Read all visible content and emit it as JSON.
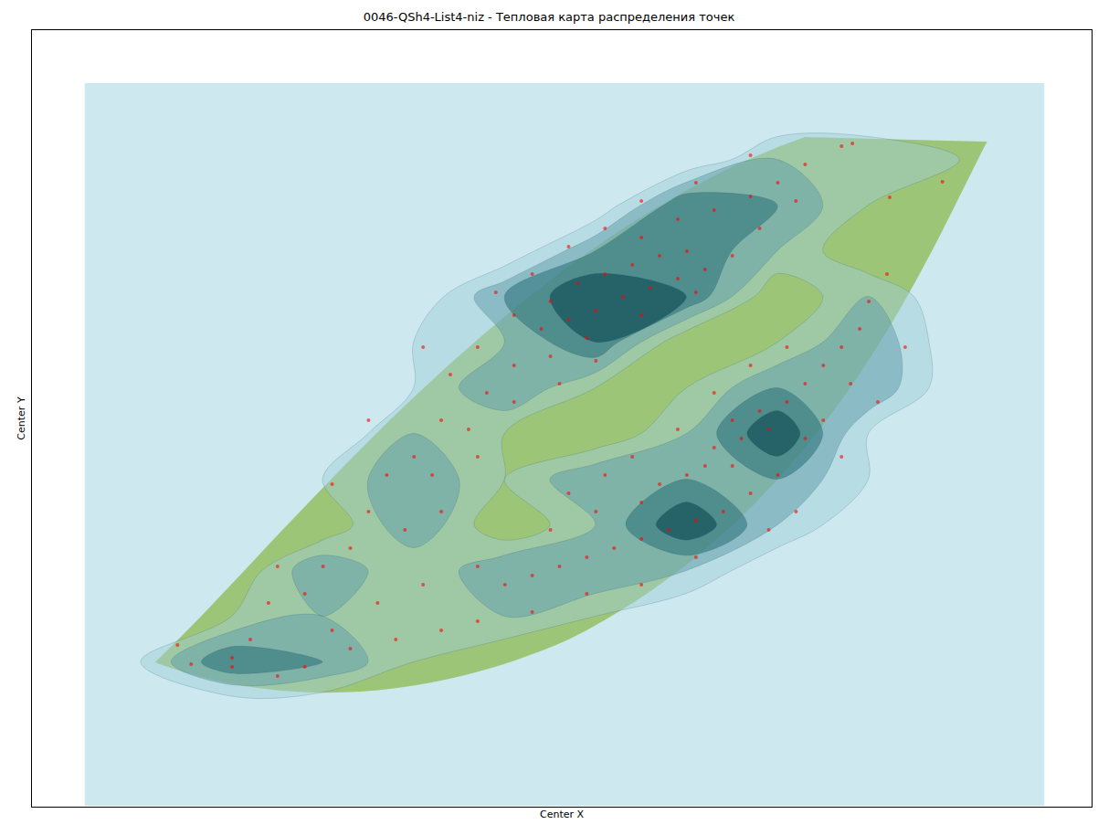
{
  "chart_data": {
    "type": "density",
    "title": "0046-QSh4-List4-niz - Тепловая карта распределения точек",
    "x_label": "Center X",
    "y_label": "Center Y",
    "x": [
      600,
      630,
      660,
      690,
      720,
      750,
      620,
      650,
      680,
      710,
      740,
      770,
      590,
      640,
      700,
      760,
      800,
      560,
      580,
      700,
      740,
      780,
      820,
      850,
      660,
      620,
      540,
      520,
      560,
      600,
      650,
      530,
      490,
      480,
      510,
      560,
      450,
      420,
      470,
      400,
      440,
      380,
      350,
      330,
      480,
      520,
      610,
      460,
      830,
      880,
      870,
      820,
      760,
      700,
      400,
      360,
      300,
      290,
      270,
      250,
      800,
      830,
      860,
      780,
      810,
      840,
      770,
      800,
      750,
      720,
      880,
      900,
      920,
      940,
      860,
      820,
      880,
      850,
      820,
      790,
      760,
      730,
      700,
      670,
      640,
      610,
      580,
      550,
      600,
      650,
      700,
      950,
      970,
      930,
      900,
      870,
      840,
      760,
      700,
      640,
      580,
      520,
      480,
      430,
      380,
      330,
      300,
      250,
      520,
      460,
      410,
      360,
      990,
      960,
      920,
      780,
      740,
      690,
      660,
      620,
      190,
      205,
      920,
      932,
      973,
      1031
    ],
    "y": [
      330,
      310,
      300,
      290,
      280,
      275,
      350,
      340,
      325,
      315,
      305,
      295,
      360,
      370,
      345,
      320,
      280,
      345,
      300,
      260,
      240,
      230,
      215,
      200,
      250,
      270,
      320,
      380,
      400,
      390,
      395,
      430,
      410,
      460,
      470,
      440,
      500,
      520,
      520,
      560,
      580,
      600,
      620,
      650,
      560,
      500,
      420,
      380,
      250,
      180,
      220,
      170,
      200,
      220,
      460,
      530,
      620,
      660,
      700,
      720,
      460,
      450,
      440,
      490,
      480,
      470,
      510,
      510,
      520,
      530,
      420,
      400,
      380,
      360,
      380,
      400,
      480,
      520,
      540,
      560,
      570,
      580,
      590,
      600,
      610,
      620,
      630,
      640,
      580,
      560,
      550,
      330,
      300,
      420,
      460,
      560,
      580,
      610,
      640,
      650,
      670,
      680,
      690,
      700,
      710,
      730,
      740,
      730,
      620,
      640,
      660,
      690,
      380,
      440,
      500,
      430,
      470,
      500,
      520,
      540,
      706,
      727,
      160,
      157,
      216,
      199
    ],
    "color": "#ff0000",
    "marker": "circle",
    "xlim": [
      30,
      1195
    ],
    "ylim": [
      883,
      33
    ],
    "tick_labels": false,
    "grid": false
  }
}
